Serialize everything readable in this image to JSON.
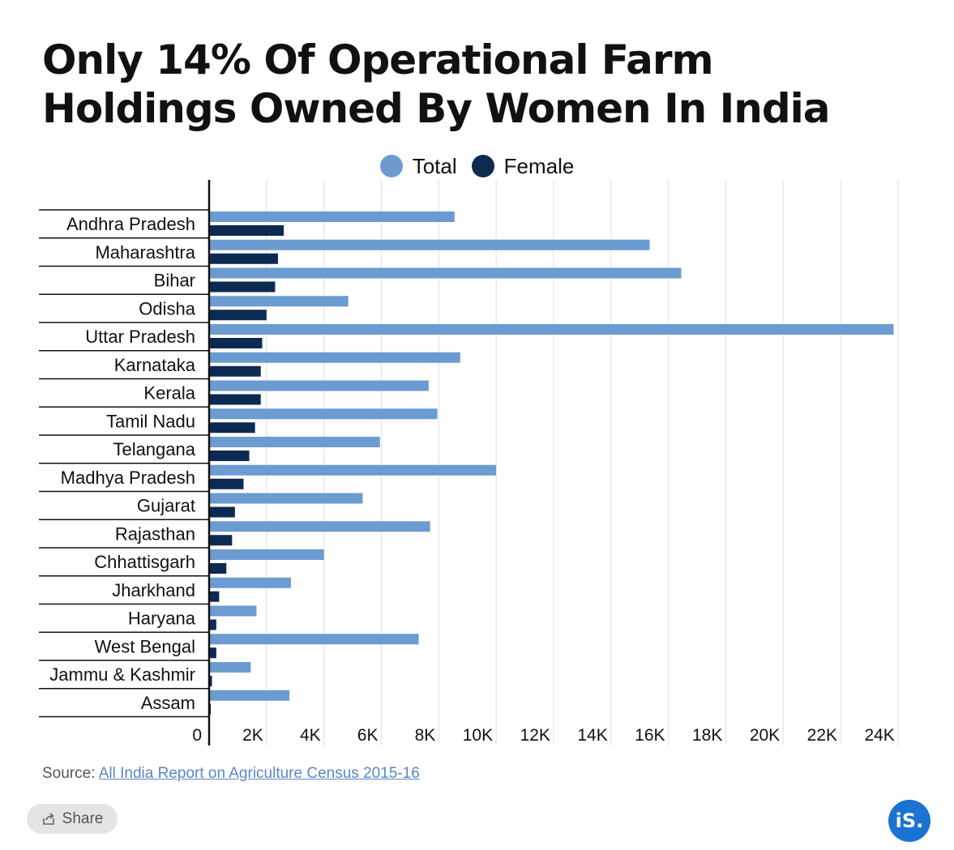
{
  "title": "Only 14% Of Operational Farm Holdings Owned By Women In India",
  "legend": [
    {
      "label": "Total",
      "color": "#6b9bd1"
    },
    {
      "label": "Female",
      "color": "#0c2a52"
    }
  ],
  "source": {
    "prefix": "Source: ",
    "link_text": "All India Report on Agriculture Census 2015-16"
  },
  "share": {
    "label": "Share",
    "icon": "share-icon"
  },
  "brand": {
    "logo_text": "iS."
  },
  "chart_data": {
    "type": "bar",
    "orientation": "horizontal",
    "categories": [
      "Andhra Pradesh",
      "Maharashtra",
      "Bihar",
      "Odisha",
      "Uttar Pradesh",
      "Karnataka",
      "Kerala",
      "Tamil Nadu",
      "Telangana",
      "Madhya Pradesh",
      "Gujarat",
      "Rajasthan",
      "Chhattisgarh",
      "Jharkhand",
      "Haryana",
      "West Bengal",
      "Jammu & Kashmir",
      "Assam"
    ],
    "series": [
      {
        "name": "Total",
        "color": "#6b9bd1",
        "values": [
          8550,
          15350,
          16450,
          4850,
          23850,
          8750,
          7650,
          7950,
          5950,
          10000,
          5350,
          7700,
          4000,
          2850,
          1650,
          7300,
          1450,
          2800
        ]
      },
      {
        "name": "Female",
        "color": "#0c2a52",
        "values": [
          2600,
          2400,
          2300,
          2000,
          1850,
          1800,
          1800,
          1600,
          1400,
          1200,
          900,
          800,
          600,
          350,
          250,
          250,
          100,
          60
        ]
      }
    ],
    "x_ticks": [
      0,
      2000,
      4000,
      6000,
      8000,
      10000,
      12000,
      14000,
      16000,
      18000,
      20000,
      22000,
      24000
    ],
    "x_tick_labels": [
      "0",
      "2K",
      "4K",
      "6K",
      "8K",
      "10K",
      "12K",
      "14K",
      "16K",
      "18K",
      "20K",
      "22K",
      "24K"
    ],
    "xlim": [
      0,
      24400
    ],
    "grid": true,
    "legend_position": "top-center"
  }
}
